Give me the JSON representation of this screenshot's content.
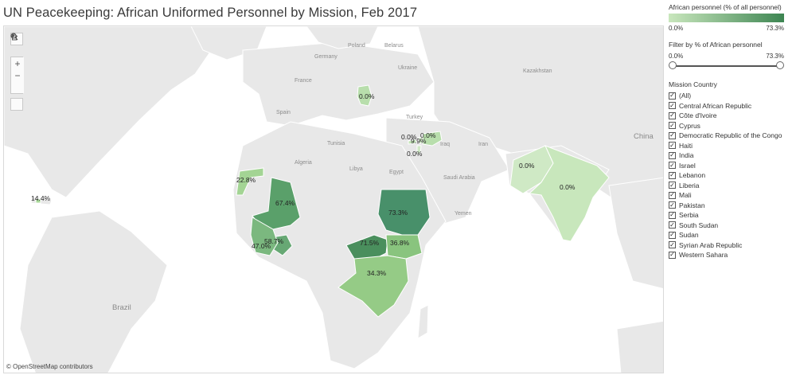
{
  "title": "UN Peacekeeping: African Uniformed Personnel by Mission, Feb 2017",
  "attribution": "© OpenStreetMap contributors",
  "map_tools": {
    "search_icon": "search-icon",
    "zoom_in": "+",
    "zoom_out": "−",
    "home_icon": "home-icon",
    "play_icon": "play-icon"
  },
  "map_labels": {
    "germany": "Germany",
    "belarus": "Belarus",
    "poland": "Poland",
    "ukraine": "Ukraine",
    "france": "France",
    "kazakhstan": "Kazakhstan",
    "spain": "Spain",
    "turkey": "Turkey",
    "iraq": "Iraq",
    "iran": "Iran",
    "algeria": "Algeria",
    "libya": "Libya",
    "egypt": "Egypt",
    "saudi": "Saudi\nArabia",
    "yemen": "Yemen",
    "china": "China",
    "brazil": "Brazil",
    "tunisia": "Tunisia"
  },
  "mission_values": [
    {
      "name": "Serbia",
      "label": "0.0%"
    },
    {
      "name": "Syrian Arab Republic",
      "label": "0.0%"
    },
    {
      "name": "Lebanon",
      "label": "0.0%"
    },
    {
      "name": "Cyprus",
      "label": "9.9%"
    },
    {
      "name": "Israel",
      "label": "0.0%"
    },
    {
      "name": "Western Sahara",
      "label": "22.8%"
    },
    {
      "name": "Mali",
      "label": "67.4%"
    },
    {
      "name": "Haiti",
      "label": "14.4%"
    },
    {
      "name": "Sudan",
      "label": "73.3%"
    },
    {
      "name": "Central African Republic",
      "label": "71.5%"
    },
    {
      "name": "South Sudan",
      "label": "36.8%"
    },
    {
      "name": "Democratic Republic of the Congo",
      "label": "34.3%"
    },
    {
      "name": "Liberia",
      "label": "58.7%"
    },
    {
      "name": "Côte d'Ivoire",
      "label": "47.0%"
    },
    {
      "name": "Pakistan",
      "label": "0.0%"
    },
    {
      "name": "India",
      "label": "0.0%"
    }
  ],
  "colors": {
    "legend_low": "#c9e7bd",
    "legend_high": "#3d8552",
    "land": "#e8e8e8",
    "border": "#ffffff"
  },
  "legend": {
    "title": "African personnel (% of all personnel)",
    "min": "0.0%",
    "max": "73.3%"
  },
  "filter": {
    "title": "Filter by % of African personnel",
    "min": "0.0%",
    "max": "73.3%",
    "low_fraction": 0,
    "high_fraction": 1
  },
  "mission_country": {
    "title": "Mission Country",
    "check_mark": "✓",
    "items": [
      "(All)",
      "Central African Republic",
      "Côte d'Ivoire",
      "Cyprus",
      "Democratic Republic of the Congo",
      "Haiti",
      "India",
      "Israel",
      "Lebanon",
      "Liberia",
      "Mali",
      "Pakistan",
      "Serbia",
      "South Sudan",
      "Sudan",
      "Syrian Arab Republic",
      "Western Sahara"
    ]
  }
}
